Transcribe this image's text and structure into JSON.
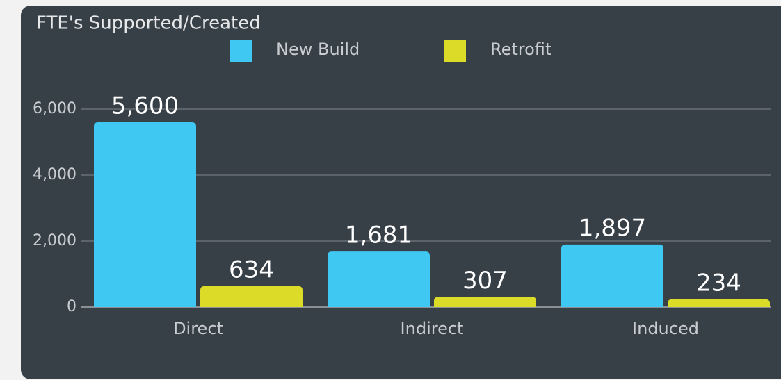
{
  "chart_data": {
    "type": "bar",
    "title": "FTE's Supported/Created",
    "categories": [
      "Direct",
      "Indirect",
      "Induced"
    ],
    "series": [
      {
        "name": "New Build",
        "color": "#3ec8f2",
        "values": [
          5600,
          1681,
          1897
        ],
        "value_labels": [
          "5,600",
          "1,681",
          "1,897"
        ]
      },
      {
        "name": "Retrofit",
        "color": "#dcdc28",
        "values": [
          634,
          307,
          234
        ],
        "value_labels": [
          "634",
          "307",
          "234"
        ]
      }
    ],
    "ylim": [
      0,
      6000
    ],
    "yticks": [
      0,
      {
        "value": 2000,
        "label": "2,000"
      },
      {
        "value": 4000,
        "label": "4,000"
      },
      {
        "value": 6000,
        "label": "6,000"
      }
    ],
    "grid": true,
    "legend": "top"
  }
}
